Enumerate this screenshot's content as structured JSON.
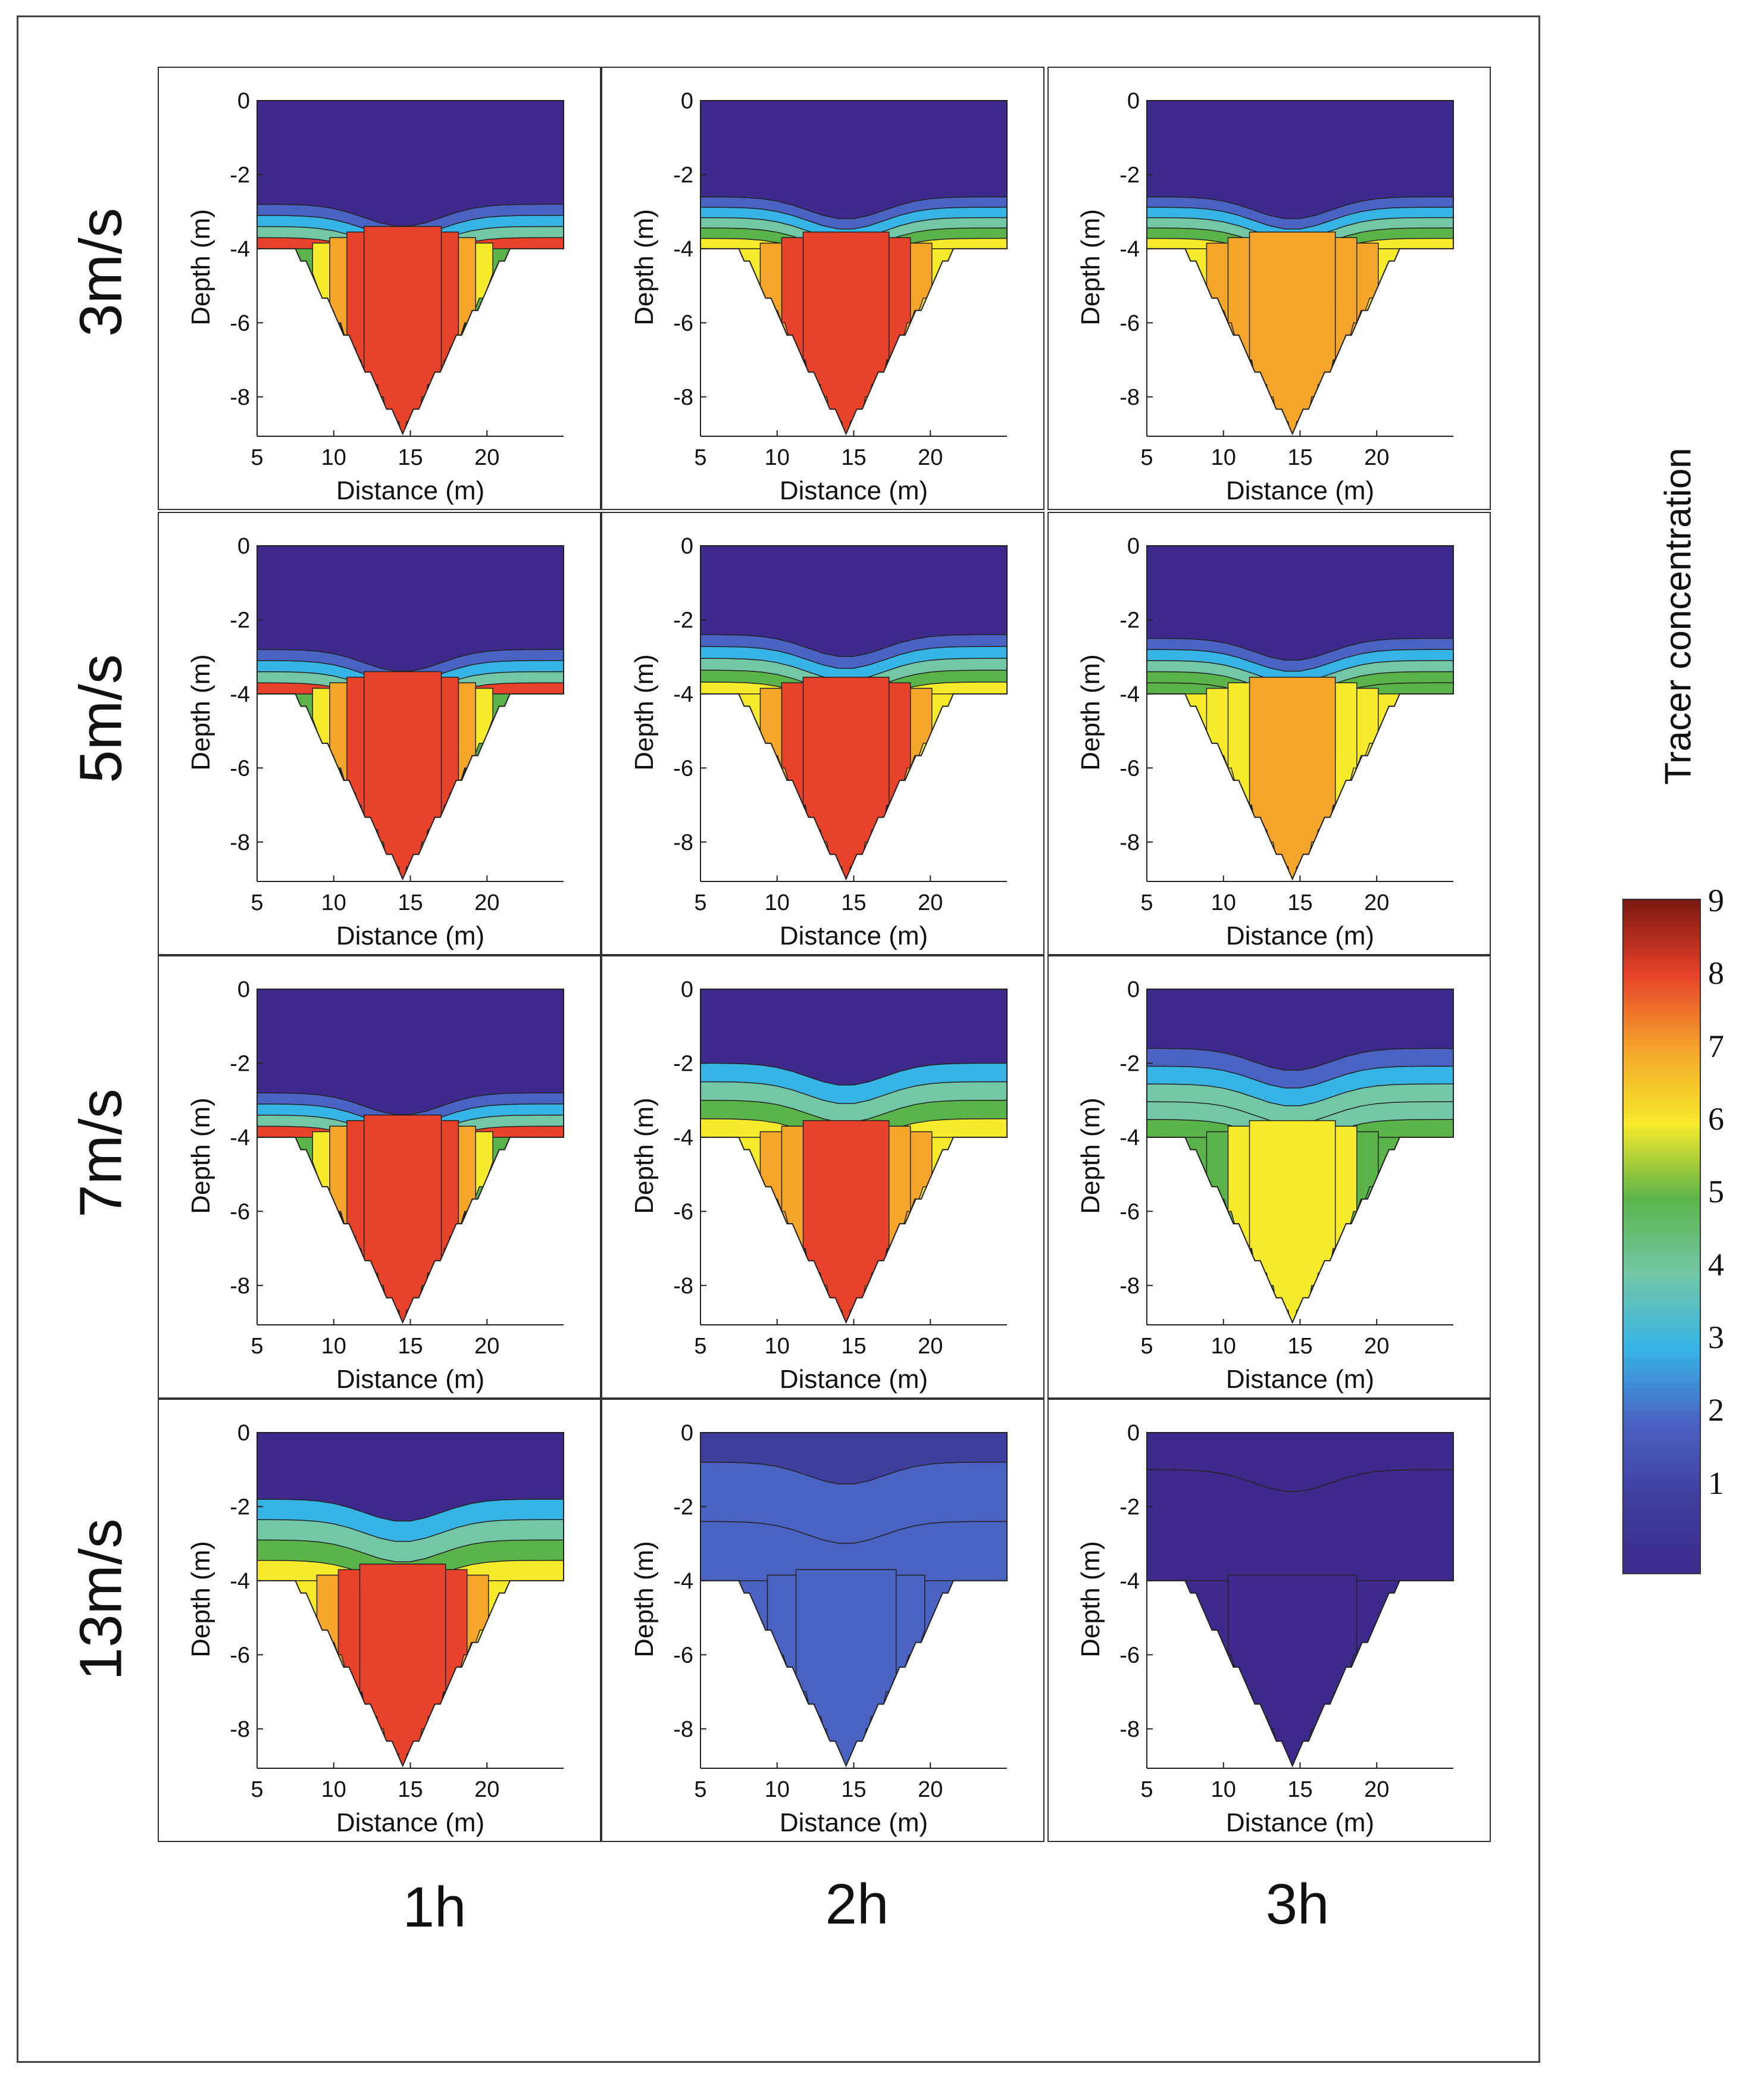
{
  "colors": {
    "bg_purple": "#3d2a8c",
    "c1": "#3f3e9e",
    "c2": "#4a62c2",
    "c3": "#37b4e6",
    "c4": "#72c7a6",
    "c5": "#5bb44a",
    "c6": "#f6ea2a",
    "c7": "#f4a52a",
    "c8": "#e8422a",
    "c9": "#7a1810"
  },
  "row_labels": [
    "3m/s",
    "5m/s",
    "7m/s",
    "13m/s"
  ],
  "col_labels": [
    "1h",
    "2h",
    "3h"
  ],
  "colorbar": {
    "title": "Tracer concentration",
    "ticks": [
      "9",
      "8",
      "7",
      "6",
      "5",
      "4",
      "3",
      "2",
      "1"
    ]
  },
  "chart_data": {
    "type": "heatmap",
    "description_type": "contour",
    "xlabel": "Distance (m)",
    "ylabel": "Depth (m)",
    "xlim": [
      5,
      25
    ],
    "ylim": [
      -9,
      0
    ],
    "xticks": [
      "5",
      "10",
      "15",
      "20"
    ],
    "yticks": [
      "0",
      "-2",
      "-4",
      "-6",
      "-8"
    ],
    "panels": [
      {
        "row": "3m/s",
        "col": "1h",
        "surface_level": 1,
        "band_top": -2.8,
        "band_levels": [
          2,
          3,
          4,
          8
        ],
        "trench_levels": [
          5,
          6,
          7,
          8,
          8
        ],
        "peak": 8
      },
      {
        "row": "3m/s",
        "col": "2h",
        "surface_level": 1,
        "band_top": -2.6,
        "band_levels": [
          2,
          3,
          4,
          5,
          6
        ],
        "trench_levels": [
          6,
          7,
          8,
          8
        ],
        "peak": 8
      },
      {
        "row": "3m/s",
        "col": "3h",
        "surface_level": 1,
        "band_top": -2.6,
        "band_levels": [
          2,
          3,
          4,
          5,
          6
        ],
        "trench_levels": [
          6,
          7,
          7,
          7
        ],
        "peak": 7
      },
      {
        "row": "5m/s",
        "col": "1h",
        "surface_level": 1,
        "band_top": -2.8,
        "band_levels": [
          2,
          3,
          4,
          8
        ],
        "trench_levels": [
          5,
          6,
          7,
          8,
          8
        ],
        "peak": 8
      },
      {
        "row": "5m/s",
        "col": "2h",
        "surface_level": 1,
        "band_top": -2.4,
        "band_levels": [
          2,
          3,
          4,
          5,
          6
        ],
        "trench_levels": [
          6,
          7,
          8,
          8
        ],
        "peak": 8
      },
      {
        "row": "5m/s",
        "col": "3h",
        "surface_level": 1,
        "band_top": -2.5,
        "band_levels": [
          2,
          3,
          4,
          5,
          5
        ],
        "trench_levels": [
          6,
          6,
          6,
          7
        ],
        "peak": 7
      },
      {
        "row": "7m/s",
        "col": "1h",
        "surface_level": 1,
        "band_top": -2.8,
        "band_levels": [
          2,
          3,
          4,
          8
        ],
        "trench_levels": [
          5,
          6,
          7,
          8,
          8
        ],
        "peak": 8
      },
      {
        "row": "7m/s",
        "col": "2h",
        "surface_level": 1,
        "band_top": -2.0,
        "band_levels": [
          3,
          4,
          5,
          6
        ],
        "trench_levels": [
          6,
          7,
          7,
          8
        ],
        "peak": 8
      },
      {
        "row": "7m/s",
        "col": "3h",
        "surface_level": 1,
        "band_top": -1.6,
        "band_levels": [
          2,
          3,
          4,
          4,
          5
        ],
        "trench_levels": [
          5,
          5,
          6,
          6
        ],
        "peak": 6
      },
      {
        "row": "13m/s",
        "col": "1h",
        "surface_level": 1,
        "band_top": -1.8,
        "band_levels": [
          3,
          4,
          5,
          6
        ],
        "trench_levels": [
          6,
          7,
          8,
          8
        ],
        "peak": 8
      },
      {
        "row": "13m/s",
        "col": "2h",
        "surface_level": 1.5,
        "band_top": -0.8,
        "band_levels": [
          2,
          2
        ],
        "trench_levels": [
          2,
          2,
          2
        ],
        "peak": 2
      },
      {
        "row": "13m/s",
        "col": "3h",
        "surface_level": 1,
        "band_top": -1.0,
        "band_levels": [
          1
        ],
        "trench_levels": [
          1,
          1
        ],
        "peak": 1
      }
    ]
  }
}
